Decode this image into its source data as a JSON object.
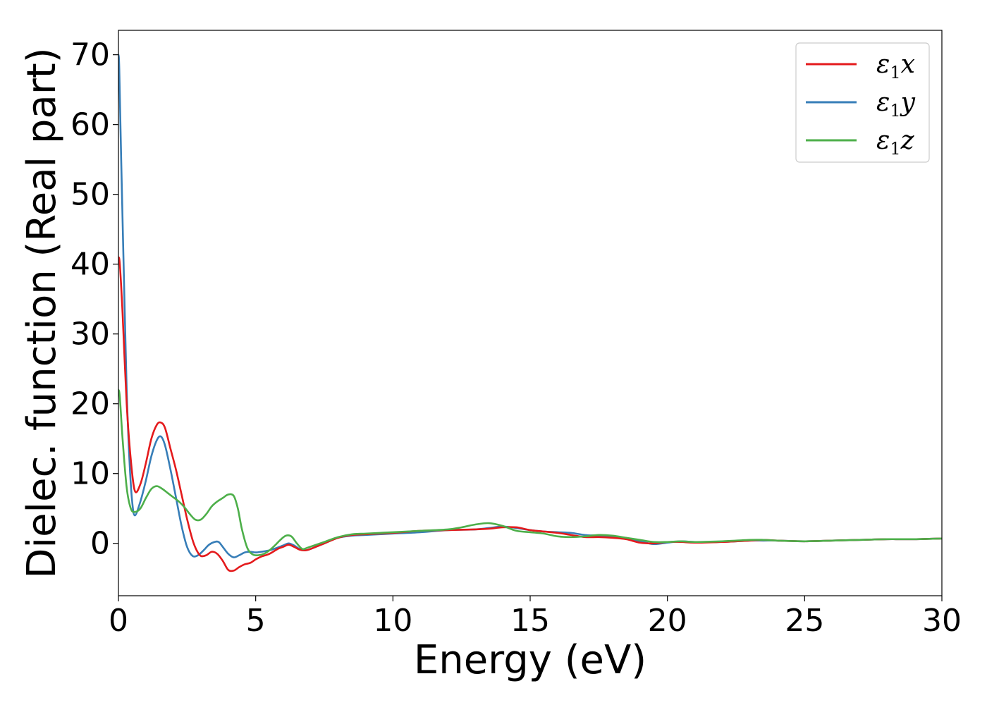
{
  "chart_data": {
    "type": "line",
    "title": "",
    "xlabel": "Energy (eV)",
    "ylabel": "Dielec. function (Real part)",
    "xlim": [
      0,
      30
    ],
    "ylim": [
      -7.5,
      73.5
    ],
    "xticks": [
      0,
      5,
      10,
      15,
      20,
      25,
      30
    ],
    "yticks": [
      0,
      10,
      20,
      30,
      40,
      50,
      60,
      70
    ],
    "grid": false,
    "legend_position": "top-right",
    "series": [
      {
        "name": "ε1x",
        "legend": {
          "base": "ε",
          "sub": "1",
          "tail": "x"
        },
        "color": "#e41a1c",
        "x": [
          0,
          0.05,
          0.15,
          0.3,
          0.45,
          0.6,
          0.8,
          1.0,
          1.2,
          1.4,
          1.55,
          1.7,
          1.9,
          2.1,
          2.3,
          2.5,
          2.7,
          2.85,
          3.0,
          3.2,
          3.4,
          3.6,
          3.8,
          4.0,
          4.2,
          4.4,
          4.6,
          4.8,
          5.0,
          5.2,
          5.5,
          5.8,
          6.0,
          6.2,
          6.4,
          6.6,
          6.8,
          7.0,
          7.5,
          8.0,
          8.5,
          9.0,
          9.5,
          10.0,
          11.0,
          12.0,
          13.0,
          13.5,
          14.0,
          14.5,
          15.0,
          15.5,
          16.0,
          16.5,
          17.0,
          17.5,
          18.0,
          18.5,
          19.0,
          19.5,
          20.0,
          20.5,
          21.0,
          22.0,
          23.0,
          23.5,
          24.0,
          25.0,
          26.0,
          27.0,
          28.0,
          29.0,
          30.0
        ],
        "values": [
          41,
          40,
          33,
          20,
          12,
          7.5,
          8.5,
          11.5,
          15,
          17,
          17.3,
          16.5,
          13.5,
          10.5,
          7,
          3.5,
          0.5,
          -1,
          -1.8,
          -1.7,
          -1.2,
          -1.5,
          -2.5,
          -3.8,
          -3.9,
          -3.4,
          -3.0,
          -2.8,
          -2.3,
          -1.9,
          -1.5,
          -0.8,
          -0.5,
          -0.2,
          -0.5,
          -0.9,
          -1.0,
          -0.8,
          0,
          0.8,
          1.2,
          1.3,
          1.4,
          1.5,
          1.8,
          1.9,
          2.0,
          2.1,
          2.3,
          2.3,
          1.9,
          1.7,
          1.5,
          1.2,
          0.9,
          0.9,
          0.8,
          0.6,
          0.1,
          0,
          0.2,
          0.2,
          0.1,
          0.2,
          0.4,
          0.5,
          0.4,
          0.3,
          0.4,
          0.5,
          0.6,
          0.6,
          0.7
        ]
      },
      {
        "name": "ε1y",
        "legend": {
          "base": "ε",
          "sub": "1",
          "tail": "y"
        },
        "color": "#377eb8",
        "x": [
          0,
          0.03,
          0.1,
          0.2,
          0.3,
          0.4,
          0.5,
          0.6,
          0.8,
          1.0,
          1.2,
          1.4,
          1.55,
          1.7,
          1.9,
          2.1,
          2.3,
          2.5,
          2.7,
          2.9,
          3.1,
          3.3,
          3.5,
          3.65,
          3.8,
          4.0,
          4.2,
          4.4,
          4.6,
          4.8,
          5.0,
          5.2,
          5.5,
          5.8,
          6.0,
          6.2,
          6.4,
          6.6,
          6.8,
          7.0,
          7.5,
          8.0,
          8.5,
          9.0,
          9.5,
          10.0,
          11.0,
          12.0,
          13.0,
          13.5,
          14.0,
          14.5,
          15.0,
          15.5,
          16.0,
          16.5,
          17.0,
          17.5,
          18.0,
          18.5,
          19.0,
          19.5,
          20.0,
          20.5,
          21.0,
          22.0,
          23.0,
          23.5,
          24.0,
          25.0,
          26.0,
          27.0,
          28.0,
          29.0,
          30.0
        ],
        "values": [
          70,
          68,
          55,
          38,
          22,
          12,
          6,
          4,
          6,
          9,
          12.5,
          14.8,
          15.3,
          14,
          10.5,
          6.5,
          2.5,
          -0.5,
          -1.8,
          -1.7,
          -1.0,
          -0.2,
          0.2,
          0.2,
          -0.5,
          -1.5,
          -2.0,
          -1.7,
          -1.3,
          -1.2,
          -1.3,
          -1.2,
          -1.0,
          -0.6,
          -0.3,
          0,
          -0.3,
          -0.8,
          -1.0,
          -0.8,
          0,
          0.8,
          1.1,
          1.2,
          1.3,
          1.4,
          1.6,
          1.9,
          2.0,
          2.2,
          2.4,
          2.2,
          1.9,
          1.7,
          1.6,
          1.5,
          1.2,
          1.1,
          0.9,
          0.7,
          0.3,
          -0.1,
          0.1,
          0.3,
          0.2,
          0.2,
          0.4,
          0.4,
          0.4,
          0.3,
          0.4,
          0.5,
          0.6,
          0.6,
          0.7
        ]
      },
      {
        "name": "ε1z",
        "legend": {
          "base": "ε",
          "sub": "1",
          "tail": "z"
        },
        "color": "#4daf4a",
        "x": [
          0,
          0.05,
          0.15,
          0.3,
          0.45,
          0.6,
          0.8,
          1.0,
          1.2,
          1.4,
          1.6,
          1.8,
          2.0,
          2.2,
          2.4,
          2.6,
          2.8,
          3.0,
          3.2,
          3.4,
          3.6,
          3.8,
          4.0,
          4.2,
          4.35,
          4.5,
          4.7,
          4.9,
          5.1,
          5.3,
          5.5,
          5.7,
          5.9,
          6.1,
          6.3,
          6.5,
          6.7,
          6.9,
          7.5,
          8.0,
          8.5,
          9.0,
          9.5,
          10.0,
          11.0,
          12.0,
          12.5,
          13.0,
          13.5,
          14.0,
          14.5,
          15.0,
          15.5,
          16.0,
          16.5,
          17.0,
          17.5,
          18.0,
          18.5,
          19.0,
          19.5,
          20.0,
          20.5,
          21.0,
          22.0,
          23.0,
          23.5,
          24.0,
          25.0,
          26.0,
          27.0,
          28.0,
          29.0,
          30.0
        ],
        "values": [
          22,
          21,
          15,
          8,
          5,
          4.5,
          5,
          6.5,
          7.8,
          8.2,
          7.8,
          7.2,
          6.6,
          6.0,
          5.2,
          4.2,
          3.4,
          3.4,
          4.2,
          5.3,
          6.0,
          6.5,
          7.0,
          6.8,
          5.0,
          2.0,
          -0.7,
          -1.6,
          -1.7,
          -1.5,
          -1.0,
          -0.3,
          0.5,
          1.1,
          1.0,
          0,
          -0.8,
          -0.6,
          0.2,
          0.9,
          1.3,
          1.4,
          1.5,
          1.6,
          1.8,
          2.0,
          2.3,
          2.7,
          2.9,
          2.5,
          1.8,
          1.6,
          1.4,
          1.0,
          0.9,
          1.0,
          1.2,
          1.1,
          0.8,
          0.5,
          0.2,
          0.2,
          0.3,
          0.2,
          0.3,
          0.5,
          0.5,
          0.4,
          0.3,
          0.4,
          0.5,
          0.6,
          0.6,
          0.7
        ]
      }
    ]
  }
}
